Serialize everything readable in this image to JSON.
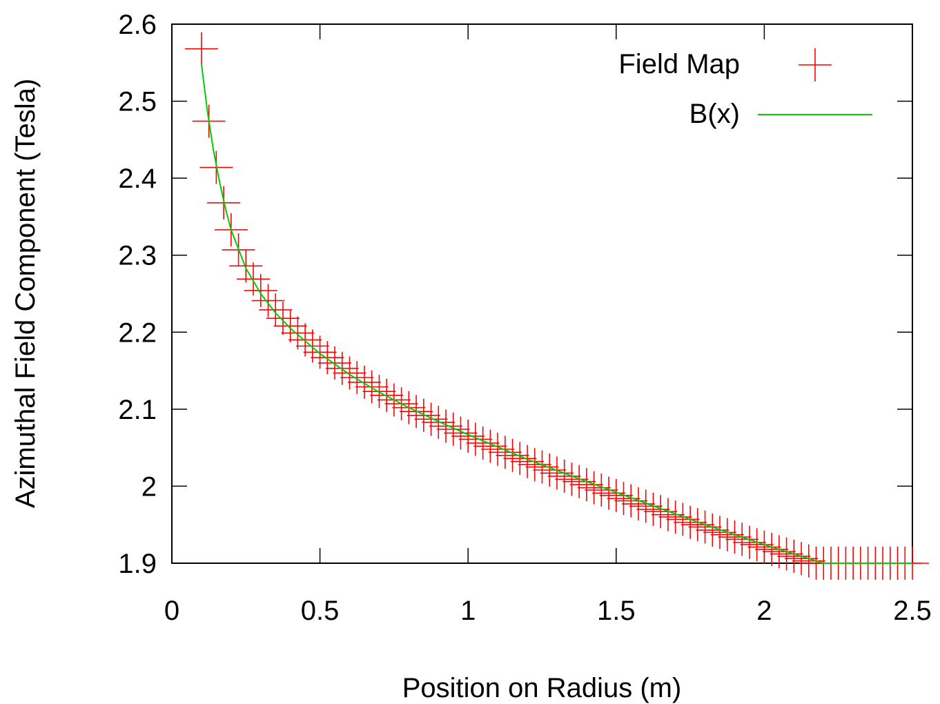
{
  "chart_data": {
    "type": "scatter",
    "title": "",
    "xlabel": "Position on Radius (m)",
    "ylabel": "Azimuthal Field Component (Tesla)",
    "xlim": [
      0,
      2.5
    ],
    "ylim": [
      1.9,
      2.6
    ],
    "x_ticks": [
      "0",
      "0.5",
      "1",
      "1.5",
      "2",
      "2.5"
    ],
    "y_ticks": [
      "1.9",
      "2",
      "2.1",
      "2.2",
      "2.3",
      "2.4",
      "2.5",
      "2.6"
    ],
    "x_tick_values": [
      0,
      0.5,
      1,
      1.5,
      2,
      2.5
    ],
    "y_tick_values": [
      1.9,
      2.0,
      2.1,
      2.2,
      2.3,
      2.4,
      2.5,
      2.6
    ],
    "grid": false,
    "legend_position": "top-right",
    "series": [
      {
        "name": "Field Map",
        "kind": "points",
        "marker": "plus",
        "color": "#ff0000",
        "x": [
          0.1,
          0.125,
          0.15,
          0.175,
          0.2,
          0.225,
          0.25,
          0.275,
          0.3,
          0.325,
          0.35,
          0.375,
          0.4,
          0.425,
          0.45,
          0.475,
          0.5,
          0.525,
          0.55,
          0.575,
          0.6,
          0.625,
          0.65,
          0.675,
          0.7,
          0.725,
          0.75,
          0.775,
          0.8,
          0.825,
          0.85,
          0.875,
          0.9,
          0.925,
          0.95,
          0.975,
          1.0,
          1.025,
          1.05,
          1.075,
          1.1,
          1.125,
          1.15,
          1.175,
          1.2,
          1.225,
          1.25,
          1.275,
          1.3,
          1.325,
          1.35,
          1.375,
          1.4,
          1.425,
          1.45,
          1.475,
          1.5,
          1.525,
          1.55,
          1.575,
          1.6,
          1.625,
          1.65,
          1.675,
          1.7,
          1.725,
          1.75,
          1.775,
          1.8,
          1.825,
          1.85,
          1.875,
          1.9,
          1.925,
          1.95,
          1.975,
          2.0,
          2.025,
          2.05,
          2.075,
          2.1,
          2.125,
          2.15,
          2.175,
          2.2,
          2.225,
          2.25,
          2.275,
          2.3,
          2.325,
          2.35,
          2.375,
          2.4,
          2.425,
          2.45,
          2.475,
          2.5
        ],
        "y": [
          2.568,
          2.474,
          2.414,
          2.368,
          2.333,
          2.307,
          2.286,
          2.269,
          2.254,
          2.241,
          2.229,
          2.218,
          2.208,
          2.199,
          2.19,
          2.182,
          2.174,
          2.167,
          2.16,
          2.153,
          2.147,
          2.141,
          2.135,
          2.129,
          2.123,
          2.118,
          2.112,
          2.107,
          2.102,
          2.097,
          2.092,
          2.087,
          2.083,
          2.078,
          2.074,
          2.069,
          2.065,
          2.061,
          2.056,
          2.052,
          2.048,
          2.044,
          2.04,
          2.036,
          2.032,
          2.028,
          2.025,
          2.021,
          2.017,
          2.013,
          2.009,
          2.006,
          2.002,
          1.998,
          1.995,
          1.991,
          1.988,
          1.984,
          1.981,
          1.977,
          1.974,
          1.97,
          1.967,
          1.963,
          1.96,
          1.957,
          1.953,
          1.95,
          1.947,
          1.943,
          1.94,
          1.937,
          1.934,
          1.931,
          1.927,
          1.924,
          1.921,
          1.918,
          1.915,
          1.912,
          1.909,
          1.906,
          1.903,
          1.9,
          1.897,
          1.894,
          1.891,
          1.888,
          1.885,
          1.882,
          1.879,
          1.876,
          1.873,
          1.87,
          1.867,
          1.864,
          1.861
        ]
      },
      {
        "name": "B(x)",
        "kind": "line",
        "color": "#00cc00",
        "x": [
          0.1,
          0.12,
          0.14,
          0.16,
          0.18,
          0.2,
          0.25,
          0.3,
          0.35,
          0.4,
          0.5,
          0.6,
          0.7,
          0.8,
          0.9,
          1.0,
          1.2,
          1.4,
          1.6,
          1.8,
          2.0,
          2.2,
          2.4,
          2.5
        ],
        "y": [
          2.548,
          2.487,
          2.437,
          2.397,
          2.362,
          2.333,
          2.283,
          2.25,
          2.225,
          2.205,
          2.172,
          2.145,
          2.122,
          2.102,
          2.084,
          2.067,
          2.035,
          2.006,
          1.978,
          1.95,
          1.924,
          1.898,
          1.873,
          1.861
        ]
      }
    ]
  }
}
